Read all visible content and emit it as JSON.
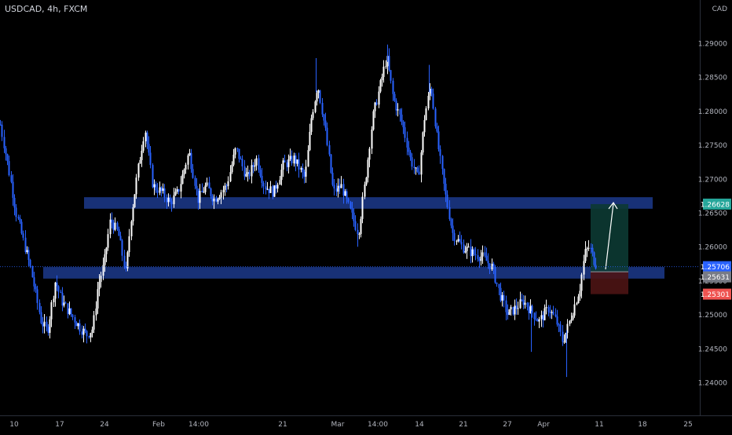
{
  "header": {
    "symbol_title": "USDCAD, 4h, FXCM"
  },
  "axis": {
    "currency": "CAD"
  },
  "colors": {
    "background": "#000000",
    "candle_up": "#ffffff",
    "candle_down": "#2962ff",
    "zone": "#1c3a8c",
    "target_tag": "#26a69a",
    "current_tag": "#2962ff",
    "entry_tag": "#787b86",
    "stop_tag": "#ef5350",
    "profit_fill": "#0c3a33",
    "loss_fill": "#4d1414",
    "text": "#b2b5be"
  },
  "chart_data": {
    "type": "candlestick",
    "instrument": "USDCAD",
    "interval": "4h",
    "source": "FXCM",
    "y_axis": {
      "range": [
        1.2345,
        1.2935
      ],
      "tick_labels": [
        "1.29000",
        "1.28500",
        "1.28000",
        "1.27500",
        "1.27000",
        "1.26500",
        "1.26000",
        "1.25500",
        "1.25000",
        "1.24500",
        "1.24000"
      ]
    },
    "x_axis": {
      "tick_labels": [
        "10",
        "17",
        "24",
        "Feb",
        "14:00",
        "21",
        "Mar",
        "14:00",
        "14",
        "21",
        "27",
        "Apr",
        "11",
        "18",
        "25"
      ]
    },
    "price_labels": {
      "target": "1.26628",
      "current": "1.25706",
      "entry": "1.25631",
      "stop": "1.25301"
    },
    "zones": [
      {
        "name": "resistance-zone",
        "low": 1.2656,
        "high": 1.2673
      },
      {
        "name": "support-zone",
        "low": 1.2553,
        "high": 1.257
      }
    ],
    "position": {
      "side": "long",
      "entry": 1.25631,
      "target": 1.26628,
      "stop": 1.25301
    },
    "price_path": [
      [
        0,
        1.278
      ],
      [
        12,
        1.2705
      ],
      [
        20,
        1.265
      ],
      [
        38,
        1.257
      ],
      [
        52,
        1.249
      ],
      [
        60,
        1.2475
      ],
      [
        70,
        1.255
      ],
      [
        78,
        1.252
      ],
      [
        90,
        1.25
      ],
      [
        102,
        1.248
      ],
      [
        110,
        1.247
      ],
      [
        118,
        1.248
      ],
      [
        124,
        1.254
      ],
      [
        132,
        1.2575
      ],
      [
        140,
        1.264
      ],
      [
        150,
        1.262
      ],
      [
        160,
        1.256
      ],
      [
        166,
        1.264
      ],
      [
        176,
        1.272
      ],
      [
        184,
        1.2775
      ],
      [
        194,
        1.269
      ],
      [
        206,
        1.268
      ],
      [
        216,
        1.2665
      ],
      [
        226,
        1.268
      ],
      [
        240,
        1.274
      ],
      [
        252,
        1.267
      ],
      [
        262,
        1.269
      ],
      [
        272,
        1.267
      ],
      [
        288,
        1.269
      ],
      [
        300,
        1.2745
      ],
      [
        314,
        1.27
      ],
      [
        326,
        1.273
      ],
      [
        336,
        1.269
      ],
      [
        348,
        1.268
      ],
      [
        360,
        1.272
      ],
      [
        374,
        1.273
      ],
      [
        388,
        1.27
      ],
      [
        396,
        1.279
      ],
      [
        404,
        1.284
      ],
      [
        414,
        1.277
      ],
      [
        424,
        1.268
      ],
      [
        434,
        1.269
      ],
      [
        446,
        1.265
      ],
      [
        456,
        1.262
      ],
      [
        466,
        1.271
      ],
      [
        474,
        1.279
      ],
      [
        484,
        1.284
      ],
      [
        492,
        1.288
      ],
      [
        500,
        1.282
      ],
      [
        512,
        1.278
      ],
      [
        522,
        1.273
      ],
      [
        532,
        1.27
      ],
      [
        540,
        1.279
      ],
      [
        548,
        1.284
      ],
      [
        556,
        1.276
      ],
      [
        566,
        1.268
      ],
      [
        576,
        1.262
      ],
      [
        588,
        1.26
      ],
      [
        602,
        1.259
      ],
      [
        614,
        1.2585
      ],
      [
        626,
        1.257
      ],
      [
        636,
        1.253
      ],
      [
        646,
        1.25
      ],
      [
        656,
        1.251
      ],
      [
        666,
        1.252
      ],
      [
        676,
        1.2505
      ],
      [
        686,
        1.249
      ],
      [
        698,
        1.251
      ],
      [
        708,
        1.249
      ],
      [
        716,
        1.246
      ],
      [
        722,
        1.248
      ],
      [
        730,
        1.251
      ],
      [
        738,
        1.254
      ],
      [
        744,
        1.259
      ],
      [
        750,
        1.26
      ],
      [
        756,
        1.258
      ],
      [
        760,
        1.2571
      ]
    ]
  }
}
